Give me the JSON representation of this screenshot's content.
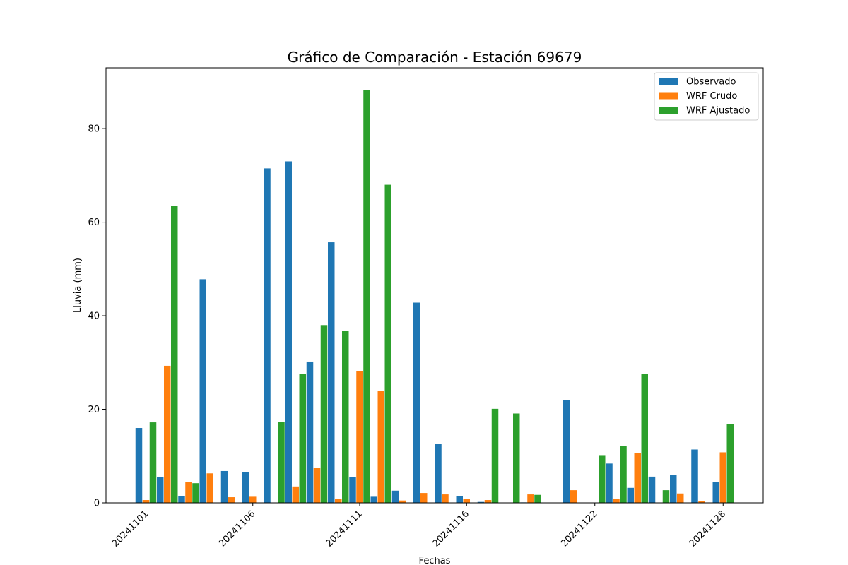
{
  "chart_data": {
    "type": "bar",
    "title": "Gráfico de Comparación - Estación 69679",
    "xlabel": "Fechas",
    "ylabel": "Lluvia (mm)",
    "ylim": [
      0,
      93
    ],
    "yticks": [
      0,
      20,
      40,
      60,
      80
    ],
    "legend_position": "top-right",
    "grid": false,
    "categories": [
      "20241101",
      "20241102",
      "20241103",
      "20241104",
      "20241105",
      "20241106",
      "20241107",
      "20241108",
      "20241109",
      "20241110",
      "20241111",
      "20241112",
      "20241113",
      "20241114",
      "20241115",
      "20241116",
      "20241117",
      "20241118",
      "20241119",
      "20241120",
      "20241121",
      "20241122",
      "20241123",
      "20241124",
      "20241125",
      "20241126",
      "20241127",
      "20241128",
      "20241129",
      "20241130"
    ],
    "xtick_labels": [
      "20241101",
      "20241106",
      "20241111",
      "20241116",
      "20241122",
      "20241128"
    ],
    "series": [
      {
        "name": "Observado",
        "color": "#1f77b4",
        "values": [
          16.0,
          5.5,
          1.4,
          47.8,
          6.8,
          6.5,
          71.5,
          73.0,
          30.2,
          55.7,
          5.5,
          1.3,
          2.6,
          42.8,
          12.6,
          1.4,
          0.2,
          0.0,
          0.1,
          0.0,
          21.9,
          0.0,
          8.4,
          3.2,
          5.6,
          6.0,
          11.4,
          4.4,
          0.0,
          0.0
        ]
      },
      {
        "name": "WRF Crudo",
        "color": "#ff7f0e",
        "values": [
          0.6,
          29.3,
          4.4,
          6.3,
          1.2,
          1.3,
          0.0,
          3.5,
          7.5,
          0.8,
          28.2,
          24.0,
          0.5,
          2.1,
          1.8,
          0.8,
          0.6,
          0.0,
          1.8,
          0.0,
          2.7,
          0.0,
          0.9,
          10.7,
          0.0,
          2.0,
          0.3,
          10.8,
          0.0,
          0.0
        ]
      },
      {
        "name": "WRF Ajustado",
        "color": "#2ca02c",
        "values": [
          17.2,
          63.5,
          4.2,
          0.0,
          0.0,
          0.0,
          17.3,
          27.5,
          38.0,
          36.8,
          88.2,
          68.0,
          0.0,
          0.0,
          0.0,
          0.0,
          20.1,
          19.1,
          1.7,
          0.0,
          0.0,
          10.2,
          12.2,
          27.6,
          2.7,
          0.0,
          0.0,
          16.8,
          0.0,
          0.0
        ]
      }
    ]
  }
}
